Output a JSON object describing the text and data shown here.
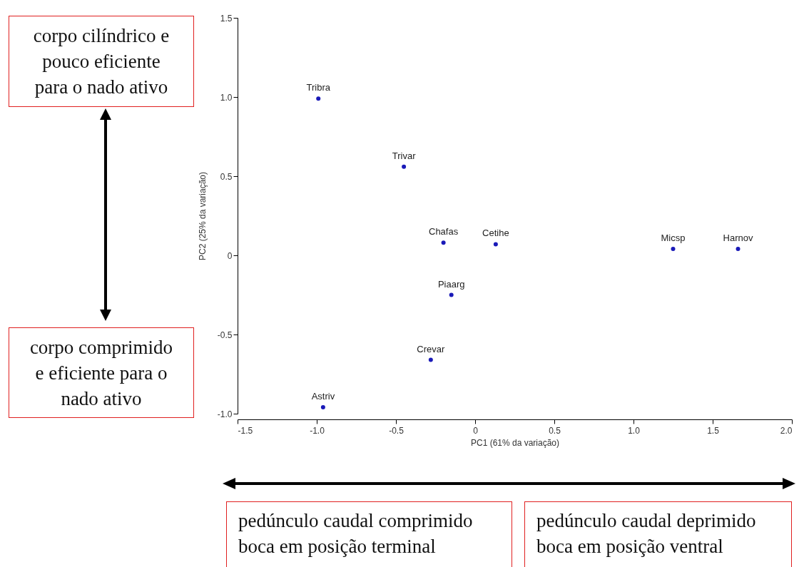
{
  "chart_data": {
    "type": "scatter",
    "xlabel": "PC1 (61% da variação)",
    "ylabel": "PC2 (25% da variação)",
    "x": [
      -0.99,
      -0.45,
      -0.2,
      0.13,
      1.25,
      1.66,
      -0.15,
      -0.28,
      -0.96
    ],
    "values": [
      0.99,
      0.56,
      0.08,
      0.07,
      0.04,
      0.04,
      -0.25,
      -0.66,
      -0.96
    ],
    "color": "#1a1ab8",
    "marker": "circle",
    "grid": false,
    "xlim": [
      -1.5,
      2.0
    ],
    "ylim": [
      -1.0,
      1.5
    ],
    "xticks": [
      {
        "value": -1.5,
        "label": "-1.5"
      },
      {
        "value": -1,
        "label": "-1.0"
      },
      {
        "value": -0.5,
        "label": "-0.5"
      },
      0,
      {
        "value": 0.5,
        "label": "0.5"
      },
      {
        "value": 1,
        "label": "1.0"
      },
      {
        "value": 1.5,
        "label": "1.5"
      },
      {
        "value": 2,
        "label": "2.0"
      }
    ],
    "yticks": [
      {
        "value": -1,
        "label": "-1.0"
      },
      {
        "value": -0.5,
        "label": "-0.5"
      },
      0,
      {
        "value": 0.5,
        "label": "0.5"
      },
      {
        "value": 1,
        "label": "1.0"
      },
      {
        "value": 1.5,
        "label": "1.5"
      }
    ],
    "annotations": [
      {
        "text": "Tribra",
        "x": -0.99,
        "y": 0.99
      },
      {
        "text": "Trivar",
        "x": -0.45,
        "y": 0.56
      },
      {
        "text": "Chafas",
        "x": -0.2,
        "y": 0.08
      },
      {
        "text": "Cetihe",
        "x": 0.13,
        "y": 0.07
      },
      {
        "text": "Micsp",
        "x": 1.25,
        "y": 0.04
      },
      {
        "text": "Harnov",
        "x": 1.66,
        "y": 0.04
      },
      {
        "text": "Piaarg",
        "x": -0.15,
        "y": -0.25
      },
      {
        "text": "Crevar",
        "x": -0.28,
        "y": -0.66
      },
      {
        "text": "Astriv",
        "x": -0.96,
        "y": -0.96
      },
      "corpo cilíndrico e\npouco eficiente\npara o nado ativo",
      "corpo comprimido\ne eficiente para o\nnado ativo",
      "pedúnculo caudal comprimido\nboca em posição terminal",
      "pedúnculo caudal deprimido\nboca em posição ventral"
    ]
  }
}
